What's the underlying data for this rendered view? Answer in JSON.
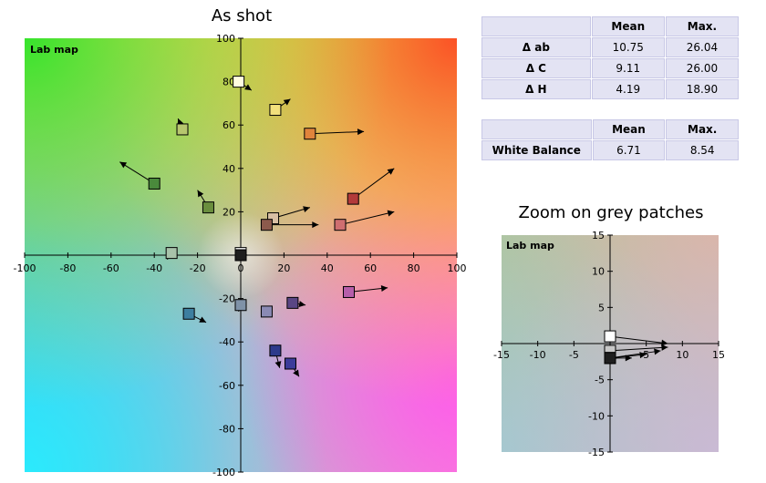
{
  "main_chart_title": "As shot",
  "zoom_chart_title": "Zoom on grey patches",
  "delta_table": {
    "headers": [
      "",
      "Mean",
      "Max."
    ],
    "rows": [
      {
        "label": "Δ ab",
        "mean": "10.75",
        "max": "26.04"
      },
      {
        "label": "Δ C",
        "mean": "9.11",
        "max": "26.00"
      },
      {
        "label": "Δ H",
        "mean": "4.19",
        "max": "18.90"
      }
    ]
  },
  "white_balance_table": {
    "headers": [
      "",
      "Mean",
      "Max."
    ],
    "rows": [
      {
        "label": "White Balance",
        "mean": "6.71",
        "max": "8.54"
      }
    ]
  },
  "chart_data": [
    {
      "type": "scatter",
      "title": "As shot",
      "plot_label": "Lab map",
      "xlim": [
        -100,
        100
      ],
      "ylim": [
        -100,
        100
      ],
      "x_ticks": [
        -100,
        -80,
        -60,
        -40,
        -20,
        0,
        20,
        40,
        60,
        80,
        100
      ],
      "y_ticks": [
        -100,
        -80,
        -60,
        -40,
        -20,
        0,
        20,
        40,
        60,
        80,
        100
      ],
      "grid": false,
      "patches": [
        {
          "x": -1,
          "y": 80,
          "x2": 5,
          "y2": 76,
          "color": "#fffce0"
        },
        {
          "x": 16,
          "y": 67,
          "x2": 23,
          "y2": 72,
          "color": "#f2e07c"
        },
        {
          "x": -27,
          "y": 58,
          "x2": -29,
          "y2": 63,
          "color": "#b7c66e"
        },
        {
          "x": 32,
          "y": 56,
          "x2": 57,
          "y2": 57,
          "color": "#e0843c"
        },
        {
          "x": -40,
          "y": 33,
          "x2": -56,
          "y2": 43,
          "color": "#4a8a3c"
        },
        {
          "x": -15,
          "y": 22,
          "x2": -20,
          "y2": 30,
          "color": "#6a8e3e"
        },
        {
          "x": 52,
          "y": 26,
          "x2": 71,
          "y2": 40,
          "color": "#b33a3a"
        },
        {
          "x": 15,
          "y": 17,
          "x2": 32,
          "y2": 22,
          "color": "#d8bfa4"
        },
        {
          "x": 12,
          "y": 14,
          "x2": 36,
          "y2": 14,
          "color": "#8c5a4c"
        },
        {
          "x": 46,
          "y": 14,
          "x2": 71,
          "y2": 20,
          "color": "#cf6e70"
        },
        {
          "x": -32,
          "y": 1,
          "x2": -34,
          "y2": -2,
          "color": "#a8c2aa"
        },
        {
          "x": 0,
          "y": 1,
          "x2": 3,
          "y2": 0,
          "color": "#ffffff"
        },
        {
          "x": 0,
          "y": 0,
          "x2": 2,
          "y2": -1,
          "color": "#1e1e1e"
        },
        {
          "x": 50,
          "y": -17,
          "x2": 68,
          "y2": -15,
          "color": "#b65eaa"
        },
        {
          "x": 24,
          "y": -22,
          "x2": 30,
          "y2": -23,
          "color": "#5a4684"
        },
        {
          "x": 0,
          "y": -23,
          "x2": -1,
          "y2": -26,
          "color": "#7f92a8"
        },
        {
          "x": 12,
          "y": -26,
          "x2": 12,
          "y2": -26,
          "color": "#8a8ab4"
        },
        {
          "x": -24,
          "y": -27,
          "x2": -16,
          "y2": -31,
          "color": "#3d7fa0"
        },
        {
          "x": 16,
          "y": -44,
          "x2": 18,
          "y2": -52,
          "color": "#2c3a8c"
        },
        {
          "x": 23,
          "y": -50,
          "x2": 27,
          "y2": -56,
          "color": "#3c3c9a"
        }
      ]
    },
    {
      "type": "scatter",
      "title": "Zoom on grey patches",
      "plot_label": "Lab map",
      "xlim": [
        -15,
        15
      ],
      "ylim": [
        -15,
        15
      ],
      "x_ticks": [
        -15,
        -10,
        -5,
        0,
        5,
        10,
        15
      ],
      "y_ticks": [
        -15,
        -10,
        -5,
        0,
        5,
        10,
        15
      ],
      "grid": false,
      "patches": [
        {
          "x": 0,
          "y": 1,
          "x2": 8,
          "y2": 0,
          "color": "#ffffff"
        },
        {
          "x": 0,
          "y": -1,
          "x2": 8,
          "y2": -0.5,
          "color": "#c8c8c8"
        },
        {
          "x": 0,
          "y": -2,
          "x2": 7,
          "y2": -1,
          "color": "#8c8c8c"
        },
        {
          "x": 0,
          "y": -2,
          "x2": 5,
          "y2": -1.5,
          "color": "#5a5a5a"
        },
        {
          "x": 0,
          "y": -2,
          "x2": 3,
          "y2": -2,
          "color": "#3c3c3c"
        },
        {
          "x": 0,
          "y": -2,
          "x2": 1,
          "y2": -2,
          "color": "#1e1e1e"
        }
      ]
    }
  ]
}
